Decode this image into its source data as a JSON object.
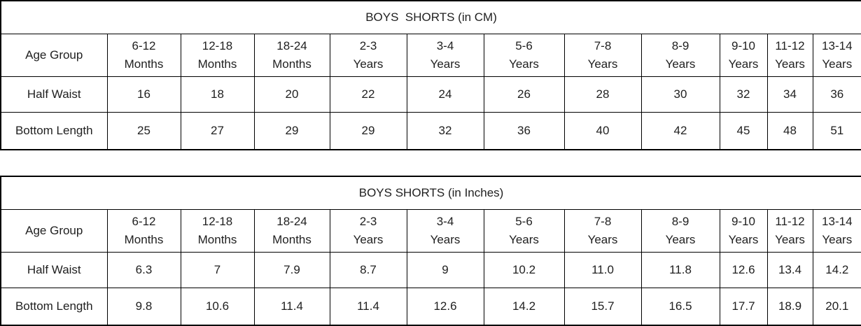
{
  "tables": [
    {
      "title": "BOYS  SHORTS (in CM)",
      "header_label": "Age Group",
      "columns": [
        {
          "range": "6-12",
          "period": "Months"
        },
        {
          "range": "12-18",
          "period": "Months"
        },
        {
          "range": "18-24",
          "period": "Months"
        },
        {
          "range": "2-3",
          "period": "Years"
        },
        {
          "range": "3-4",
          "period": "Years"
        },
        {
          "range": "5-6",
          "period": "Years"
        },
        {
          "range": "7-8",
          "period": "Years"
        },
        {
          "range": "8-9",
          "period": "Years"
        },
        {
          "range": "9-10",
          "period": "Years"
        },
        {
          "range": "11-12",
          "period": "Years"
        },
        {
          "range": "13-14",
          "period": "Years"
        }
      ],
      "rows": [
        {
          "label": "Half Waist",
          "values": [
            "16",
            "18",
            "20",
            "22",
            "24",
            "26",
            "28",
            "30",
            "32",
            "34",
            "36"
          ]
        },
        {
          "label": "Bottom Length",
          "values": [
            "25",
            "27",
            "29",
            "29",
            "32",
            "36",
            "40",
            "42",
            "45",
            "48",
            "51"
          ]
        }
      ]
    },
    {
      "title": "BOYS SHORTS (in Inches)",
      "header_label": "Age Group",
      "columns": [
        {
          "range": "6-12",
          "period": "Months"
        },
        {
          "range": "12-18",
          "period": "Months"
        },
        {
          "range": "18-24",
          "period": "Months"
        },
        {
          "range": "2-3",
          "period": "Years"
        },
        {
          "range": "3-4",
          "period": "Years"
        },
        {
          "range": "5-6",
          "period": "Years"
        },
        {
          "range": "7-8",
          "period": "Years"
        },
        {
          "range": "8-9",
          "period": "Years"
        },
        {
          "range": "9-10",
          "period": "Years"
        },
        {
          "range": "11-12",
          "period": "Years"
        },
        {
          "range": "13-14",
          "period": "Years"
        }
      ],
      "rows": [
        {
          "label": "Half Waist",
          "values": [
            "6.3",
            "7",
            "7.9",
            "8.7",
            "9",
            "10.2",
            "11.0",
            "11.8",
            "12.6",
            "13.4",
            "14.2"
          ]
        },
        {
          "label": "Bottom Length",
          "values": [
            "9.8",
            "10.6",
            "11.4",
            "11.4",
            "12.6",
            "14.2",
            "15.7",
            "16.5",
            "17.7",
            "18.9",
            "20.1"
          ]
        }
      ]
    }
  ],
  "colors": {
    "border": "#000000",
    "text": "#1f1f1f",
    "background": "#ffffff"
  }
}
